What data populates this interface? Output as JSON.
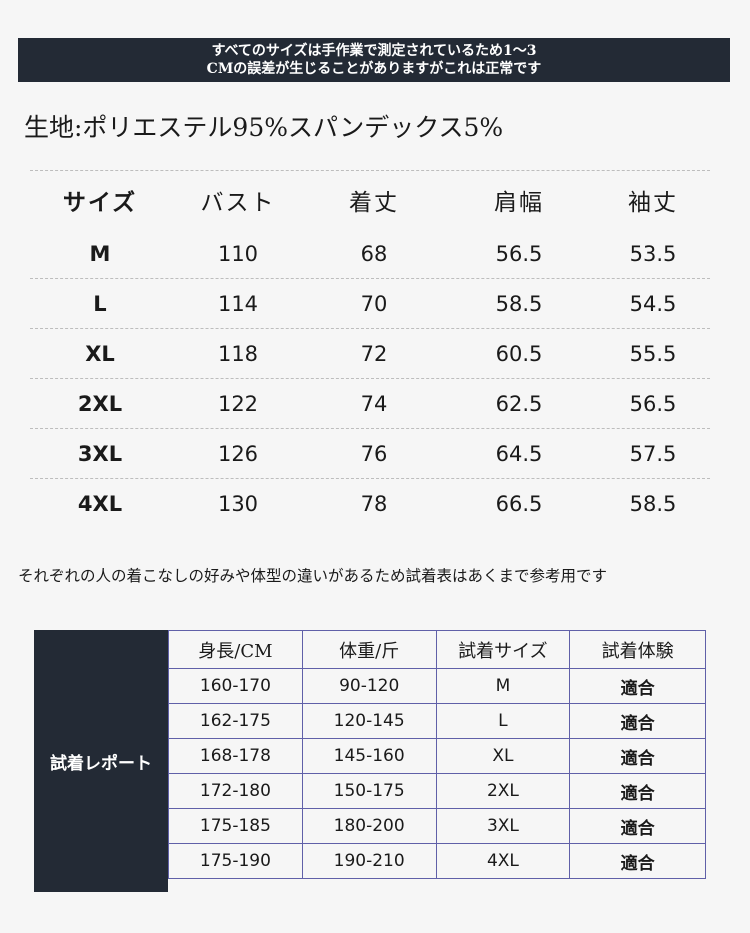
{
  "banner": {
    "line1": "すべてのサイズは手作業で測定されているため1〜3",
    "line2": "CMの誤差が生じることがありますがこれは正常です"
  },
  "material": "生地:ポリエステル95%スパンデックス5%",
  "size_table": {
    "headers": [
      "サイズ",
      "バスト",
      "着丈",
      "肩幅",
      "袖丈"
    ],
    "rows": [
      [
        "M",
        "110",
        "68",
        "56.5",
        "53.5"
      ],
      [
        "L",
        "114",
        "70",
        "58.5",
        "54.5"
      ],
      [
        "XL",
        "118",
        "72",
        "60.5",
        "55.5"
      ],
      [
        "2XL",
        "122",
        "74",
        "62.5",
        "56.5"
      ],
      [
        "3XL",
        "126",
        "76",
        "64.5",
        "57.5"
      ],
      [
        "4XL",
        "130",
        "78",
        "66.5",
        "58.5"
      ]
    ]
  },
  "note": "それぞれの人の着こなしの好みや体型の違いがあるため試着表はあくまで参考用です",
  "report": {
    "label": "試着レポート",
    "headers": [
      "身長/CM",
      "体重/斤",
      "試着サイズ",
      "試着体験"
    ],
    "rows": [
      [
        "160-170",
        "90-120",
        "M",
        "適合"
      ],
      [
        "162-175",
        "120-145",
        "L",
        "適合"
      ],
      [
        "168-178",
        "145-160",
        "XL",
        "適合"
      ],
      [
        "172-180",
        "150-175",
        "2XL",
        "適合"
      ],
      [
        "175-185",
        "180-200",
        "3XL",
        "適合"
      ],
      [
        "175-190",
        "190-210",
        "4XL",
        "適合"
      ]
    ]
  }
}
